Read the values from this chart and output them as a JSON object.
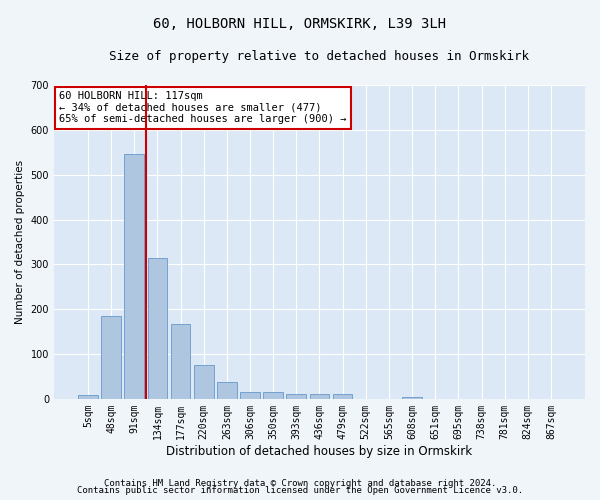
{
  "title1": "60, HOLBORN HILL, ORMSKIRK, L39 3LH",
  "title2": "Size of property relative to detached houses in Ormskirk",
  "xlabel": "Distribution of detached houses by size in Ormskirk",
  "ylabel": "Number of detached properties",
  "footnote1": "Contains HM Land Registry data © Crown copyright and database right 2024.",
  "footnote2": "Contains public sector information licensed under the Open Government Licence v3.0.",
  "categories": [
    "5sqm",
    "48sqm",
    "91sqm",
    "134sqm",
    "177sqm",
    "220sqm",
    "263sqm",
    "306sqm",
    "350sqm",
    "393sqm",
    "436sqm",
    "479sqm",
    "522sqm",
    "565sqm",
    "608sqm",
    "651sqm",
    "695sqm",
    "738sqm",
    "781sqm",
    "824sqm",
    "867sqm"
  ],
  "values": [
    8,
    185,
    545,
    315,
    168,
    76,
    38,
    15,
    15,
    10,
    10,
    10,
    0,
    0,
    5,
    0,
    0,
    0,
    0,
    0,
    0
  ],
  "bar_color": "#aec6df",
  "bar_edge_color": "#6699cc",
  "vline_pos": 2.5,
  "vline_color": "#cc0000",
  "annotation_text": "60 HOLBORN HILL: 117sqm\n← 34% of detached houses are smaller (477)\n65% of semi-detached houses are larger (900) →",
  "annotation_box_color": "#ffffff",
  "annotation_box_edge": "#cc0000",
  "ylim": [
    0,
    700
  ],
  "yticks": [
    0,
    100,
    200,
    300,
    400,
    500,
    600,
    700
  ],
  "plot_bg_color": "#dce8f5",
  "grid_color": "#ffffff",
  "fig_bg_color": "#f0f5fa",
  "title1_fontsize": 10,
  "title2_fontsize": 9,
  "xlabel_fontsize": 8.5,
  "ylabel_fontsize": 7.5,
  "tick_fontsize": 7,
  "annotation_fontsize": 7.5,
  "footnote_fontsize": 6.5
}
